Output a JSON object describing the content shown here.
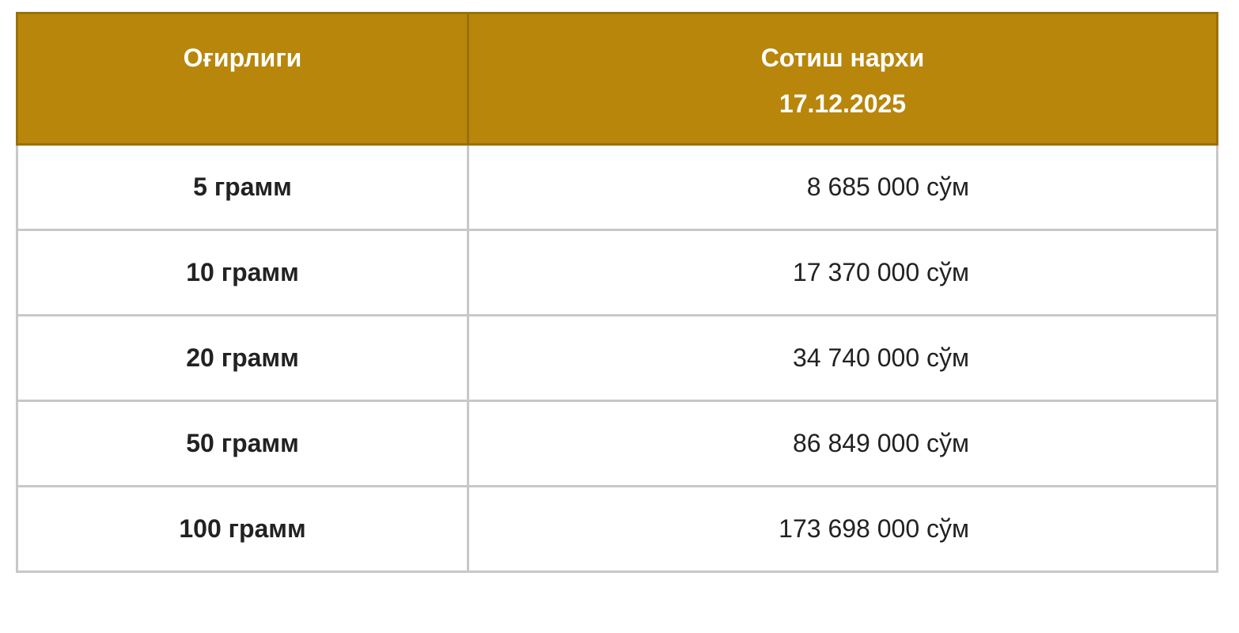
{
  "table": {
    "header": [
      "Оғирлиги",
      "Сотиш нархи",
      "17.12.2025"
    ],
    "rows": [
      [
        "5 грамм",
        "8 685 000 сўм"
      ],
      [
        "10 грамм",
        "17 370 000 сўм"
      ],
      [
        "20 грамм",
        "34 740 000 сўм"
      ],
      [
        "50 грамм",
        "86 849 000 сўм"
      ],
      [
        "100 грамм",
        "173 698 000 сўм"
      ]
    ]
  }
}
